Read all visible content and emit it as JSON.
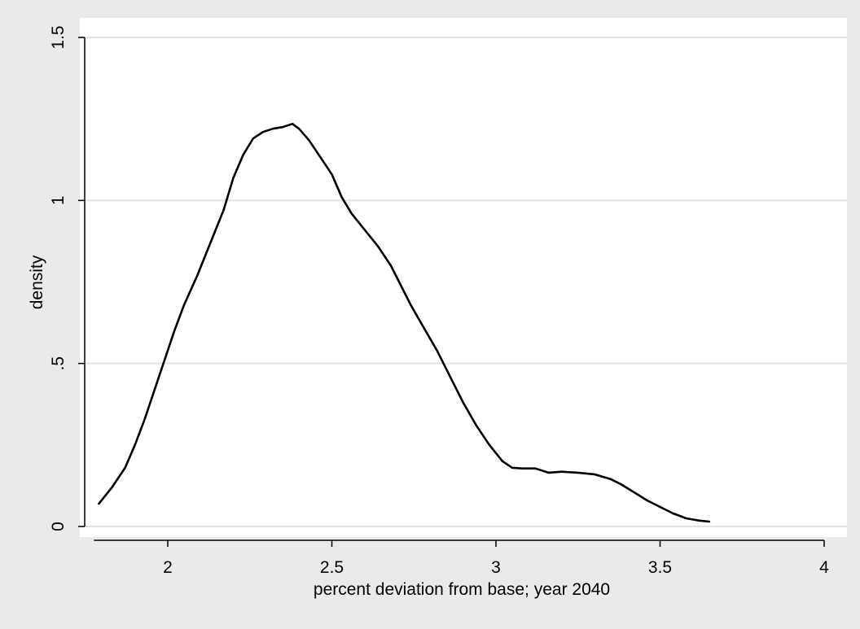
{
  "chart_data": {
    "type": "line",
    "title": "",
    "xlabel": "percent deviation from base; year 2040",
    "ylabel": "density",
    "xlim": [
      1.775,
      4.05
    ],
    "ylim": [
      0,
      1.5
    ],
    "x_ticks": [
      {
        "value": 2,
        "label": "2"
      },
      {
        "value": 2.5,
        "label": "2.5"
      },
      {
        "value": 3,
        "label": "3"
      },
      {
        "value": 3.5,
        "label": "3.5"
      },
      {
        "value": 4,
        "label": "4"
      }
    ],
    "y_ticks": [
      {
        "value": 0,
        "label": "0"
      },
      {
        "value": 0.5,
        "label": ".5"
      },
      {
        "value": 1,
        "label": "1"
      },
      {
        "value": 1.5,
        "label": "1.5"
      }
    ],
    "grid": "horizontal",
    "colors": {
      "background": "#eaeaea",
      "plot_area": "#ffffff",
      "gridline": "#e3e3e3",
      "line": "#000000"
    },
    "series": [
      {
        "x": [
          1.79,
          1.83,
          1.87,
          1.9,
          1.93,
          1.96,
          1.99,
          2.02,
          2.05,
          2.09,
          2.13,
          2.17,
          2.2,
          2.23,
          2.26,
          2.29,
          2.32,
          2.35,
          2.38,
          2.4,
          2.43,
          2.46,
          2.5,
          2.53,
          2.56,
          2.6,
          2.64,
          2.68,
          2.71,
          2.74,
          2.78,
          2.82,
          2.86,
          2.9,
          2.94,
          2.98,
          3.02,
          3.05,
          3.08,
          3.12,
          3.16,
          3.2,
          3.25,
          3.3,
          3.35,
          3.38,
          3.42,
          3.46,
          3.5,
          3.54,
          3.58,
          3.62,
          3.65
        ],
        "y": [
          0.07,
          0.12,
          0.18,
          0.25,
          0.33,
          0.42,
          0.51,
          0.6,
          0.68,
          0.77,
          0.87,
          0.97,
          1.07,
          1.14,
          1.19,
          1.21,
          1.22,
          1.225,
          1.235,
          1.22,
          1.185,
          1.14,
          1.08,
          1.01,
          0.96,
          0.91,
          0.86,
          0.8,
          0.74,
          0.68,
          0.61,
          0.54,
          0.46,
          0.38,
          0.31,
          0.25,
          0.2,
          0.18,
          0.178,
          0.178,
          0.165,
          0.168,
          0.165,
          0.16,
          0.145,
          0.13,
          0.105,
          0.08,
          0.06,
          0.04,
          0.025,
          0.018,
          0.015
        ]
      }
    ]
  }
}
